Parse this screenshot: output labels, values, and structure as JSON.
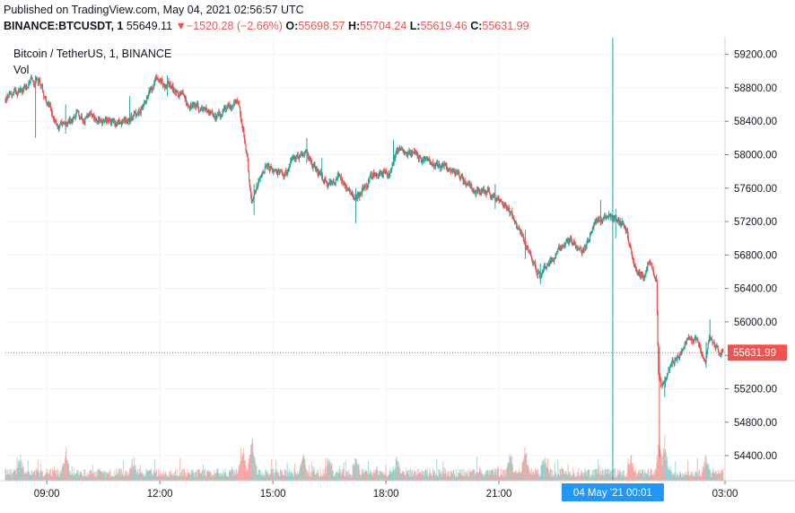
{
  "header": {
    "published": "Published on TradingView.com, May 04, 2021 02:56:57 UTC",
    "symbol": "BINANCE:BTCUSDT, 1",
    "last": "55649.11",
    "change": "−1520.28 (−2.66%)",
    "o_label": "O:",
    "o_value": "55698.57",
    "h_label": "H:",
    "h_value": "55704.24",
    "l_label": "L:",
    "l_value": "55619.46",
    "c_label": "C:",
    "c_value": "55631.99"
  },
  "legend": {
    "title": "Bitcoin / TetherUS, 1, BINANCE",
    "vol": "Vol"
  },
  "colors": {
    "up": "#26a69a",
    "down": "#ef5350",
    "grid": "#f0f3fa",
    "crosshair": "#26a69a",
    "price_label": "#ef5350",
    "time_label": "#2196f3"
  },
  "chart_data": {
    "type": "candlestick",
    "title": "Bitcoin / TetherUS, 1, BINANCE",
    "interval": "1",
    "ylim": [
      54100,
      59400
    ],
    "yticks": [
      "59200.00",
      "58800.00",
      "58400.00",
      "58000.00",
      "57600.00",
      "57200.00",
      "56800.00",
      "56400.00",
      "56000.00",
      "55600.00",
      "55200.00",
      "54800.00",
      "54400.00"
    ],
    "ytick_values": [
      59200,
      58800,
      58400,
      58000,
      57600,
      57200,
      56800,
      56400,
      56000,
      55600,
      55200,
      54800,
      54400
    ],
    "xlim": [
      7.9,
      27.0
    ],
    "xticks": [
      "09:00",
      "12:00",
      "15:00",
      "18:00",
      "21:00",
      "03:00"
    ],
    "xtick_values": [
      9,
      12,
      15,
      18,
      21,
      27
    ],
    "current_price": 55631.99,
    "current_price_label": "55631.99",
    "crosshair_time": 24.02,
    "crosshair_label": "04 May '21   00:01",
    "grid": true,
    "path": [
      [
        7.9,
        58650
      ],
      [
        8.3,
        58780
      ],
      [
        8.8,
        58900
      ],
      [
        9.3,
        58320
      ],
      [
        9.6,
        58430
      ],
      [
        10.1,
        58480
      ],
      [
        10.6,
        58380
      ],
      [
        11.1,
        58420
      ],
      [
        11.5,
        58530
      ],
      [
        11.9,
        58920
      ],
      [
        12.3,
        58800
      ],
      [
        12.7,
        58650
      ],
      [
        13.1,
        58530
      ],
      [
        13.6,
        58470
      ],
      [
        14.1,
        58620
      ],
      [
        14.3,
        58080
      ],
      [
        14.45,
        57400
      ],
      [
        14.8,
        57820
      ],
      [
        15.3,
        57760
      ],
      [
        15.8,
        58050
      ],
      [
        16.2,
        57810
      ],
      [
        16.5,
        57620
      ],
      [
        16.8,
        57750
      ],
      [
        17.2,
        57440
      ],
      [
        17.7,
        57780
      ],
      [
        18.1,
        57760
      ],
      [
        18.3,
        58080
      ],
      [
        18.7,
        58020
      ],
      [
        19.2,
        57880
      ],
      [
        19.8,
        57830
      ],
      [
        20.3,
        57600
      ],
      [
        20.8,
        57530
      ],
      [
        21.2,
        57420
      ],
      [
        21.5,
        57130
      ],
      [
        21.7,
        56950
      ],
      [
        22.1,
        56560
      ],
      [
        22.5,
        56820
      ],
      [
        22.9,
        56980
      ],
      [
        23.3,
        56870
      ],
      [
        23.6,
        57220
      ],
      [
        24.0,
        57280
      ],
      [
        24.4,
        57100
      ],
      [
        24.55,
        56780
      ],
      [
        24.8,
        56500
      ],
      [
        25.0,
        56700
      ],
      [
        25.2,
        56500
      ],
      [
        25.25,
        55400
      ],
      [
        25.35,
        55200
      ],
      [
        25.6,
        55500
      ],
      [
        25.8,
        55600
      ],
      [
        26.0,
        55800
      ],
      [
        26.3,
        55780
      ],
      [
        26.5,
        55560
      ],
      [
        26.6,
        55850
      ],
      [
        26.9,
        55640
      ]
    ],
    "spikes": [
      [
        8.7,
        58200,
        58950
      ],
      [
        9.5,
        58250,
        58600
      ],
      [
        11.2,
        58380,
        58700
      ],
      [
        12.2,
        58700,
        58950
      ],
      [
        14.5,
        57280,
        57650
      ],
      [
        15.9,
        57900,
        58200
      ],
      [
        16.3,
        57700,
        57960
      ],
      [
        17.2,
        57180,
        57600
      ],
      [
        18.2,
        57900,
        58180
      ],
      [
        20.9,
        57350,
        57650
      ],
      [
        21.7,
        56750,
        57100
      ],
      [
        22.1,
        56450,
        56700
      ],
      [
        23.7,
        57200,
        57460
      ],
      [
        24.1,
        57000,
        57350
      ],
      [
        25.26,
        54380,
        55700
      ],
      [
        25.4,
        55100,
        55350
      ],
      [
        26.5,
        55450,
        55760
      ],
      [
        26.6,
        55800,
        56030
      ]
    ],
    "volume_bursts": [
      [
        8.3,
        0.5
      ],
      [
        9.5,
        0.45
      ],
      [
        11.3,
        0.4
      ],
      [
        14.2,
        0.75
      ],
      [
        14.45,
        1.0
      ],
      [
        15.8,
        0.55
      ],
      [
        16.5,
        0.45
      ],
      [
        17.2,
        0.5
      ],
      [
        18.3,
        0.5
      ],
      [
        21.3,
        0.5
      ],
      [
        21.7,
        0.7
      ],
      [
        22.2,
        0.45
      ],
      [
        24.5,
        0.5
      ],
      [
        25.25,
        1.0
      ],
      [
        25.4,
        0.8
      ],
      [
        26.5,
        0.5
      ]
    ]
  }
}
